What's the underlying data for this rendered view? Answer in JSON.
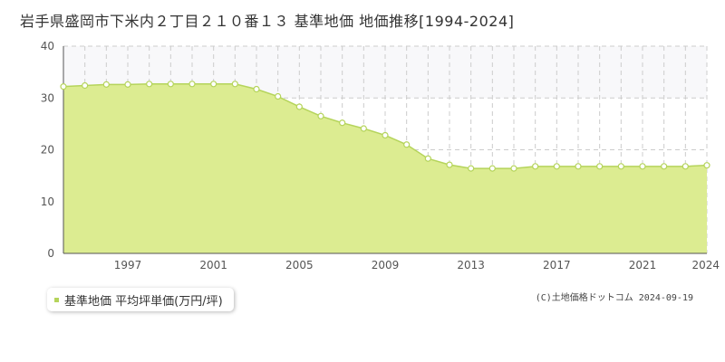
{
  "title": "岩手県盛岡市下米内２丁目２１０番１３ 基準地価 地価推移[1994-2024]",
  "legend": {
    "label": "基準地価 平均坪単価(万円/坪)"
  },
  "credit": "(C)土地価格ドットコム 2024-09-19",
  "colors": {
    "line": "#b5d45b",
    "fill": "#dcec91",
    "marker_fill": "#ffffff",
    "upper_band": "#f8f8fa",
    "grid": "#cccccc",
    "axis": "#555555"
  },
  "chart_data": {
    "type": "area",
    "title": "岩手県盛岡市下米内２丁目２１０番１３ 基準地価 地価推移[1994-2024]",
    "xlabel": "",
    "ylabel": "",
    "xlim": [
      1994,
      2024
    ],
    "ylim": [
      0,
      40
    ],
    "yticks": [
      0,
      10,
      20,
      30,
      40
    ],
    "xticks": [
      1997,
      2001,
      2005,
      2009,
      2013,
      2017,
      2021,
      2024
    ],
    "grid": true,
    "legend_position": "bottom-left",
    "series": [
      {
        "name": "基準地価 平均坪単価(万円/坪)",
        "x": [
          1994,
          1995,
          1996,
          1997,
          1998,
          1999,
          2000,
          2001,
          2002,
          2003,
          2004,
          2005,
          2006,
          2007,
          2008,
          2009,
          2010,
          2011,
          2012,
          2013,
          2014,
          2015,
          2016,
          2017,
          2018,
          2019,
          2020,
          2021,
          2022,
          2023,
          2024
        ],
        "values": [
          32.2,
          32.4,
          32.6,
          32.6,
          32.7,
          32.7,
          32.7,
          32.7,
          32.7,
          31.7,
          30.3,
          28.3,
          26.5,
          25.2,
          24.1,
          22.8,
          21.0,
          18.3,
          17.1,
          16.4,
          16.4,
          16.4,
          16.8,
          16.8,
          16.8,
          16.8,
          16.8,
          16.8,
          16.8,
          16.8,
          17.0
        ]
      }
    ]
  }
}
